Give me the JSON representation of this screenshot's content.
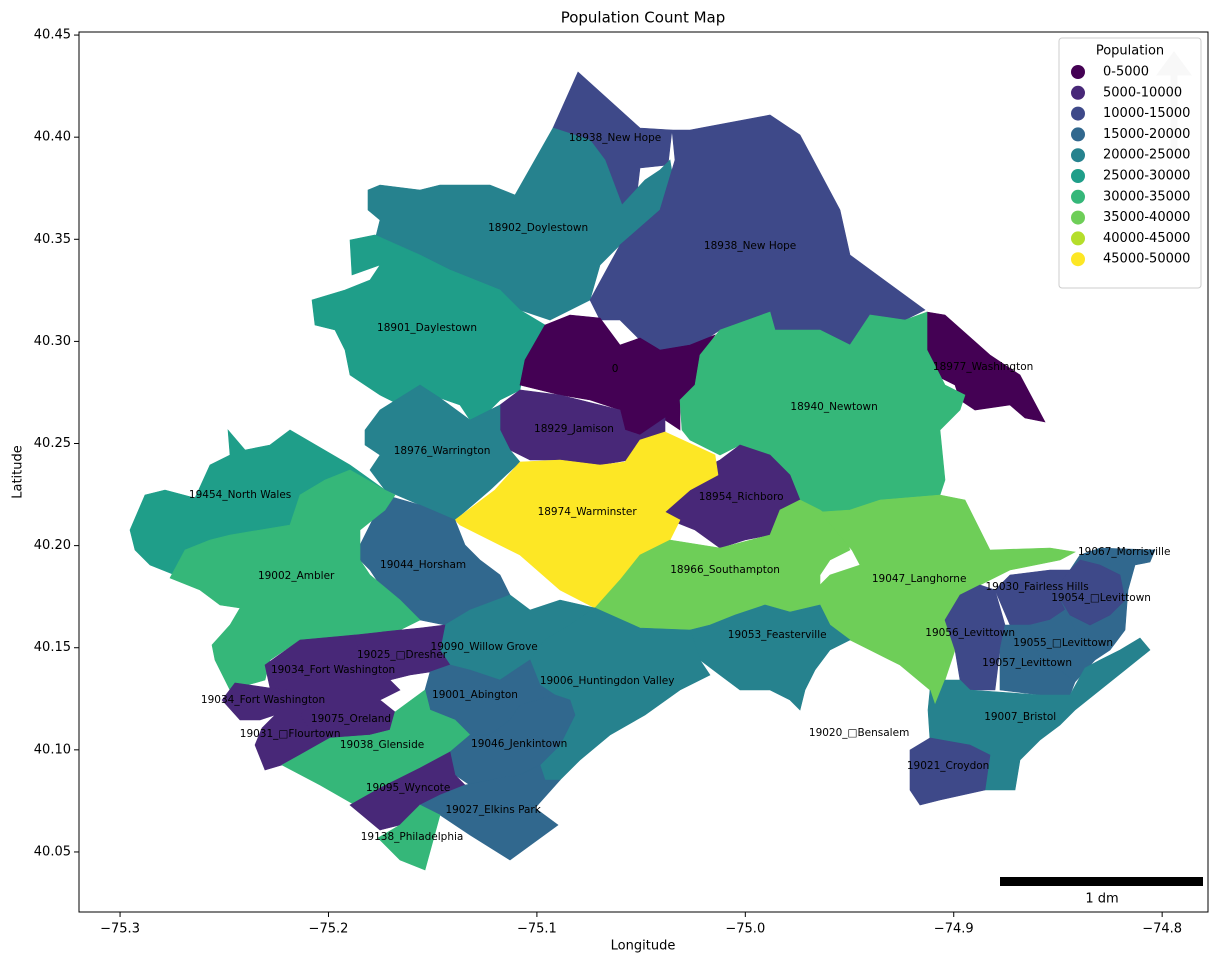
{
  "chart_data": {
    "type": "choropleth",
    "title": "Population Count Map",
    "xlabel": "Longitude",
    "ylabel": "Latitude",
    "xlim": [
      -75.3197,
      -74.778
    ],
    "ylim": [
      40.0206,
      40.4515
    ],
    "xticks": [
      {
        "value": -75.3,
        "label": "−75.3"
      },
      {
        "value": -75.2,
        "label": "−75.2"
      },
      {
        "value": -75.1,
        "label": "−75.1"
      },
      {
        "value": -75.0,
        "label": "−75.0"
      },
      {
        "value": -74.9,
        "label": "−74.9"
      },
      {
        "value": -74.8,
        "label": "−74.8"
      }
    ],
    "yticks": [
      40.05,
      {
        "value": 40.1,
        "label": "40.10"
      },
      40.15,
      {
        "value": 40.2,
        "label": "40.20"
      },
      40.25,
      {
        "value": 40.3,
        "label": "40.30"
      },
      40.35,
      {
        "value": 40.4,
        "label": "40.40"
      },
      40.45
    ],
    "legend": {
      "title": "Population",
      "position": "upper right",
      "items": [
        {
          "label": "0-5000",
          "color": "#440154"
        },
        {
          "label": "5000-10000",
          "color": "#482878"
        },
        {
          "label": "10000-15000",
          "color": "#3e4989"
        },
        {
          "label": "15000-20000",
          "color": "#31688e"
        },
        {
          "label": "20000-25000",
          "color": "#26828e"
        },
        {
          "label": "25000-30000",
          "color": "#1f9e89"
        },
        {
          "label": "30000-35000",
          "color": "#35b779"
        },
        {
          "label": "35000-40000",
          "color": "#6ece58"
        },
        {
          "label": "40000-45000",
          "color": "#b5de2b"
        },
        {
          "label": "45000-50000",
          "color": "#fde725"
        }
      ]
    },
    "scalebar_label": "1 dm",
    "regions": [
      {
        "name": "18938_New Hope",
        "bin": "10000-15000",
        "lon": -75.0625,
        "lat": 40.3996
      },
      {
        "name": "18902_Doylestown",
        "bin": "20000-25000",
        "lon": -75.0994,
        "lat": 40.3555
      },
      {
        "name": "18938_New Hope",
        "bin": "10000-15000",
        "lon": -74.9977,
        "lat": 40.3467
      },
      {
        "name": "18901_Daylestown",
        "bin": "25000-30000",
        "lon": -75.1527,
        "lat": 40.3065
      },
      {
        "name": "0",
        "bin": "0-5000",
        "lon": -75.0625,
        "lat": 40.2865
      },
      {
        "name": "18977_Washington",
        "bin": "0-5000",
        "lon": -74.8859,
        "lat": 40.2875
      },
      {
        "name": "18940_Newtown",
        "bin": "30000-35000",
        "lon": -74.9574,
        "lat": 40.2679
      },
      {
        "name": "18929_Jamison",
        "bin": "5000-10000",
        "lon": -75.0822,
        "lat": 40.2571
      },
      {
        "name": "18976_Warrington",
        "bin": "20000-25000",
        "lon": -75.1455,
        "lat": 40.2463
      },
      {
        "name": "19454_North Wales",
        "bin": "25000-30000",
        "lon": -75.2424,
        "lat": 40.2248
      },
      {
        "name": "18954_Richboro",
        "bin": "5000-10000",
        "lon": -75.002,
        "lat": 40.2238
      },
      {
        "name": "18974_Warminster",
        "bin": "45000-50000",
        "lon": -75.0759,
        "lat": 40.2165
      },
      {
        "name": "19067_Morrisville",
        "bin": "15000-20000",
        "lon": -74.8182,
        "lat": 40.1969
      },
      {
        "name": "19044_Horsham",
        "bin": "15000-20000",
        "lon": -75.1546,
        "lat": 40.1905
      },
      {
        "name": "18966_Southampton",
        "bin": "35000-40000",
        "lon": -75.0097,
        "lat": 40.1881
      },
      {
        "name": "19002_Ambler",
        "bin": "30000-35000",
        "lon": -75.2155,
        "lat": 40.1851
      },
      {
        "name": "19047_Langhorne",
        "bin": "35000-40000",
        "lon": -74.9166,
        "lat": 40.1837
      },
      {
        "name": "19030_Fairless Hills",
        "bin": "10000-15000",
        "lon": -74.86,
        "lat": 40.1797
      },
      {
        "name": "19054_□Levittown",
        "bin": "10000-15000",
        "lon": -74.8293,
        "lat": 40.1744
      },
      {
        "name": "19056_Levittown",
        "bin": "10000-15000",
        "lon": -74.8921,
        "lat": 40.1572
      },
      {
        "name": "19053_Feasterville",
        "bin": "20000-25000",
        "lon": -74.9847,
        "lat": 40.1562
      },
      {
        "name": "19055_□Levittown",
        "bin": "15000-20000",
        "lon": -74.8475,
        "lat": 40.1523
      },
      {
        "name": "19090_Willow Grove",
        "bin": "20000-25000",
        "lon": -75.1253,
        "lat": 40.1504
      },
      {
        "name": "19025_□Dresher",
        "bin": "5000-10000",
        "lon": -75.1647,
        "lat": 40.1465
      },
      {
        "name": "19057_Levittown",
        "bin": "15000-20000",
        "lon": -74.8648,
        "lat": 40.1425
      },
      {
        "name": "19006_Huntingdon Valley",
        "bin": "20000-25000",
        "lon": -75.0663,
        "lat": 40.1337
      },
      {
        "name": "19034_Fort Washington",
        "bin": "5000-10000",
        "lon": -75.1978,
        "lat": 40.1391
      },
      {
        "name": "19001_Abington",
        "bin": "15000-20000",
        "lon": -75.1297,
        "lat": 40.1269
      },
      {
        "name": "19034_Fort Washington",
        "bin": "5000-10000",
        "lon": -75.2314,
        "lat": 40.1244
      },
      {
        "name": "19007_Bristol",
        "bin": "20000-25000",
        "lon": -74.8681,
        "lat": 40.1161
      },
      {
        "name": "19075_Oreland",
        "bin": "5000-10000",
        "lon": -75.1892,
        "lat": 40.1151
      },
      {
        "name": "19031_□Flourtown",
        "bin": "5000-10000",
        "lon": -75.2184,
        "lat": 40.1078
      },
      {
        "name": "19038_Glenside",
        "bin": "30000-35000",
        "lon": -75.1743,
        "lat": 40.1024
      },
      {
        "name": "19046_Jenkintown",
        "bin": "15000-20000",
        "lon": -75.1085,
        "lat": 40.1029
      },
      {
        "name": "19021_Croydon",
        "bin": "10000-15000",
        "lon": -74.9027,
        "lat": 40.0921
      },
      {
        "name": "19095_Wyncote",
        "bin": "5000-10000",
        "lon": -75.1618,
        "lat": 40.0813
      },
      {
        "name": "19027_Elkins Park",
        "bin": "15000-20000",
        "lon": -75.121,
        "lat": 40.0706
      },
      {
        "name": "19020_□Bensalem",
        "lon": -74.9454,
        "lat": 40.1083
      },
      {
        "name": "19138_Philadelphia",
        "bin": "30000-35000",
        "lon": -75.1599,
        "lat": 40.0573
      }
    ]
  }
}
